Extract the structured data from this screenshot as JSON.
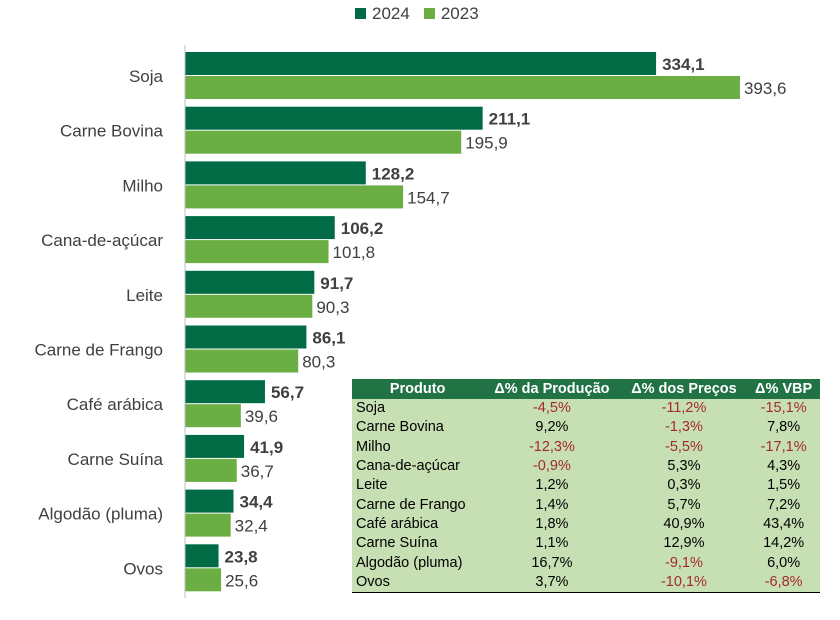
{
  "chart_data": {
    "type": "bar",
    "orientation": "horizontal",
    "categories": [
      "Soja",
      "Carne Bovina",
      "Milho",
      "Cana-de-açúcar",
      "Leite",
      "Carne de Frango",
      "Café arábica",
      "Carne Suína",
      "Algodão (pluma)",
      "Ovos"
    ],
    "series": [
      {
        "name": "2024",
        "color": "#006b44",
        "values": [
          334.1,
          211.1,
          128.2,
          106.2,
          91.7,
          86.1,
          56.7,
          41.9,
          34.4,
          23.8
        ],
        "labels": [
          "334,1",
          "211,1",
          "128,2",
          "106,2",
          "91,7",
          "86,1",
          "56,7",
          "41,9",
          "34,4",
          "23,8"
        ]
      },
      {
        "name": "2023",
        "color": "#6aae44",
        "values": [
          393.6,
          195.9,
          154.7,
          101.8,
          90.3,
          80.3,
          39.6,
          36.7,
          32.4,
          25.6
        ],
        "labels": [
          "393,6",
          "195,9",
          "154,7",
          "101,8",
          "90,3",
          "80,3",
          "39,6",
          "36,7",
          "32,4",
          "25,6"
        ]
      }
    ],
    "legend": "top",
    "grid": false
  },
  "table": {
    "headers": [
      "Produto",
      "Δ% da Produção",
      "Δ% dos Preços",
      "Δ% VBP"
    ],
    "rows": [
      [
        "Soja",
        "-4,5%",
        "-11,2%",
        "-15,1%"
      ],
      [
        "Carne Bovina",
        "9,2%",
        "-1,3%",
        "7,8%"
      ],
      [
        "Milho",
        "-12,3%",
        "-5,5%",
        "-17,1%"
      ],
      [
        "Cana-de-açúcar",
        "-0,9%",
        "5,3%",
        "4,3%"
      ],
      [
        "Leite",
        "1,2%",
        "0,3%",
        "1,5%"
      ],
      [
        "Carne de Frango",
        "1,4%",
        "5,7%",
        "7,2%"
      ],
      [
        "Café arábica",
        "1,8%",
        "40,9%",
        "43,4%"
      ],
      [
        "Carne Suína",
        "1,1%",
        "12,9%",
        "14,2%"
      ],
      [
        "Algodão (pluma)",
        "16,7%",
        "-9,1%",
        "6,0%"
      ],
      [
        "Ovos",
        "3,7%",
        "-10,1%",
        "-6,8%"
      ]
    ]
  }
}
